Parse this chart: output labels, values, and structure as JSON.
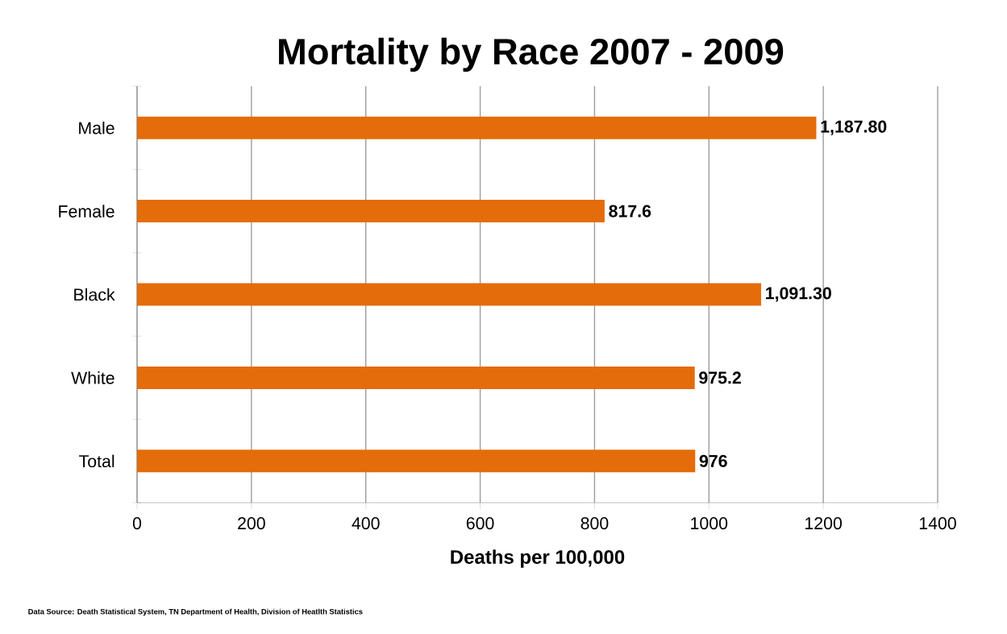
{
  "chart_data": {
    "type": "bar",
    "orientation": "horizontal",
    "title": "Mortality by Race  2007 - 2009",
    "xlabel": "Deaths per 100,000",
    "categories": [
      "Male",
      "Female",
      "Black",
      "White",
      "Total"
    ],
    "values": [
      1187.8,
      817.6,
      1091.3,
      975.2,
      976
    ],
    "value_labels": [
      "1,187.80",
      "817.6",
      "1,091.30",
      "975.2",
      "976"
    ],
    "color": "#e46c0a",
    "xlim": [
      0,
      1400
    ],
    "xticks": [
      0,
      200,
      400,
      600,
      800,
      1000,
      1200,
      1400
    ],
    "grid": "x",
    "annotations": [
      "Data Source: Death Statistical System, TN Department of Health, Division of Heatlth Statistics"
    ]
  }
}
